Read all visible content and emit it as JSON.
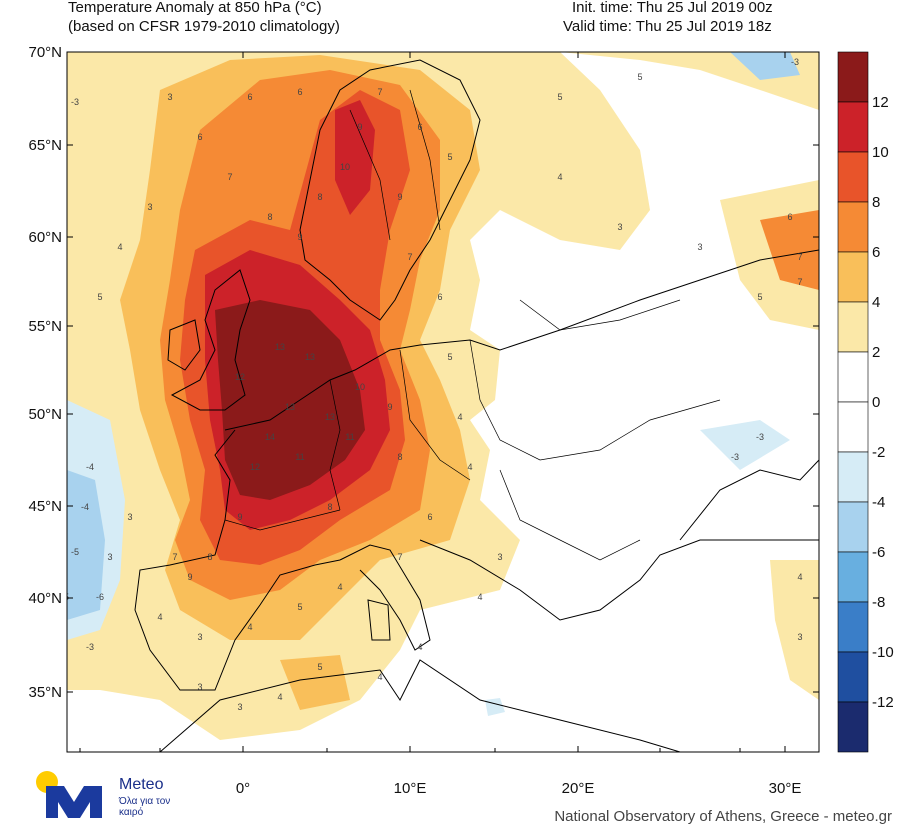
{
  "header": {
    "title_line1": "Temperature Anomaly at 850 hPa (°C)",
    "title_line2": "(based on CFSR 1979-2010 climatology)",
    "init_time": "Init. time: Thu 25 Jul 2019 00z",
    "valid_time": "Valid time: Thu 25 Jul 2019 18z"
  },
  "axes": {
    "lat_labels": [
      "70°N",
      "65°N",
      "60°N",
      "55°N",
      "50°N",
      "45°N",
      "40°N",
      "35°N"
    ],
    "lon_labels": [
      "0°",
      "10°E",
      "20°E",
      "30°E"
    ]
  },
  "colorbar": {
    "levels": [
      "12",
      "10",
      "8",
      "6",
      "4",
      "2",
      "0",
      "-2",
      "-4",
      "-6",
      "-8",
      "-10",
      "-12"
    ],
    "colors": [
      "#8b1a1a",
      "#cc2229",
      "#e8542a",
      "#f58a35",
      "#f9bf5a",
      "#fbe8a8",
      "#ffffff",
      "#ffffff",
      "#d6ecf6",
      "#a8d2ee",
      "#68afe0",
      "#3a7ec8",
      "#1f4fa0",
      "#1b2b6e"
    ]
  },
  "map_values": [
    "13",
    "13",
    "14",
    "12",
    "11",
    "10",
    "9",
    "8",
    "7",
    "6",
    "5",
    "4",
    "3",
    "-3",
    "-4",
    "-5",
    "-6"
  ],
  "branding": {
    "logo_name": "Meteo",
    "logo_tagline": "Όλα για τον καιρό",
    "credit": "National Observatory of Athens, Greece - meteo.gr"
  }
}
